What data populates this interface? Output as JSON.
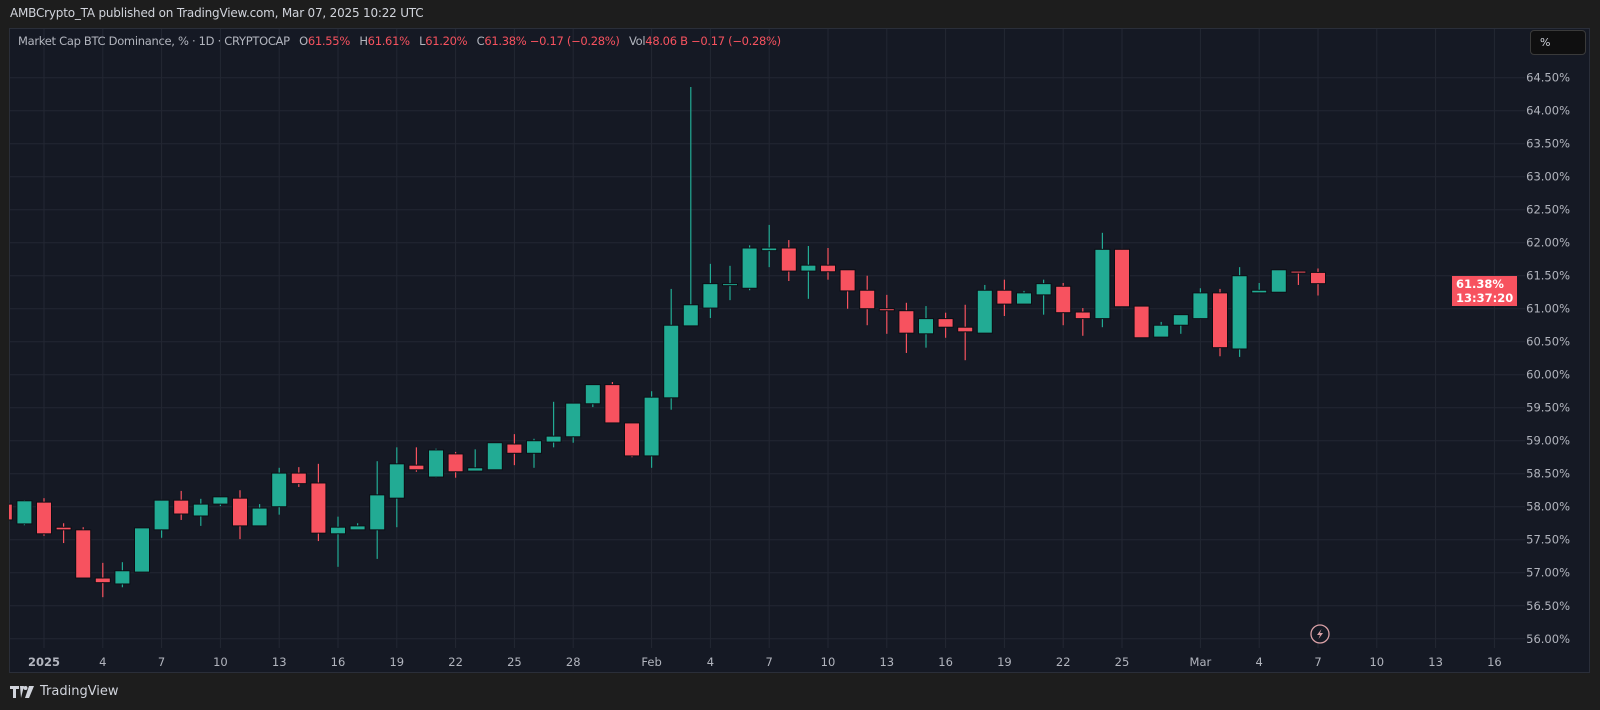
{
  "publish_line": "AMBCrypto_TA published on TradingView.com, Mar 07, 2025 10:22 UTC",
  "legend": {
    "symbol": "Market Cap BTC Dominance, % · 1D · CRYPTOCAP",
    "o_label": "O",
    "o": "61.55%",
    "h_label": "H",
    "h": "61.61%",
    "l_label": "L",
    "l": "61.20%",
    "c_label": "C",
    "c": "61.38%",
    "change": "−0.17 (−0.28%)",
    "vol_label": "Vol",
    "vol": "48.06 B",
    "vol_change": "−0.17 (−0.28%)"
  },
  "scale_button": "%",
  "price_tag": {
    "price": "61.38%",
    "countdown": "13:37:20"
  },
  "footer_logo": "TradingView",
  "icons": {
    "alert": "lightning-icon",
    "logo": "tradingview-logo"
  },
  "colors": {
    "up": "#22ab94",
    "down": "#f7525f",
    "background": "#151924",
    "grid": "#232733"
  },
  "chart_data": {
    "type": "candlestick",
    "title": "Market Cap BTC Dominance, % · 1D · CRYPTOCAP",
    "interval": "1D",
    "ylim": [
      56.0,
      64.5
    ],
    "y_unit": "%",
    "grid": true,
    "y_ticks": [
      "56.00%",
      "56.50%",
      "57.00%",
      "57.50%",
      "58.00%",
      "58.50%",
      "59.00%",
      "59.50%",
      "60.00%",
      "60.50%",
      "61.00%",
      "61.50%",
      "62.00%",
      "62.50%",
      "63.00%",
      "63.50%",
      "64.00%",
      "64.50%"
    ],
    "x_ticks": [
      {
        "date": "2025-01-01",
        "label": "2025"
      },
      {
        "date": "2025-01-04",
        "label": "4"
      },
      {
        "date": "2025-01-07",
        "label": "7"
      },
      {
        "date": "2025-01-10",
        "label": "10"
      },
      {
        "date": "2025-01-13",
        "label": "13"
      },
      {
        "date": "2025-01-16",
        "label": "16"
      },
      {
        "date": "2025-01-19",
        "label": "19"
      },
      {
        "date": "2025-01-22",
        "label": "22"
      },
      {
        "date": "2025-01-25",
        "label": "25"
      },
      {
        "date": "2025-01-28",
        "label": "28"
      },
      {
        "date": "2025-02-01",
        "label": "Feb"
      },
      {
        "date": "2025-02-04",
        "label": "4"
      },
      {
        "date": "2025-02-07",
        "label": "7"
      },
      {
        "date": "2025-02-10",
        "label": "10"
      },
      {
        "date": "2025-02-13",
        "label": "13"
      },
      {
        "date": "2025-02-16",
        "label": "16"
      },
      {
        "date": "2025-02-19",
        "label": "19"
      },
      {
        "date": "2025-02-22",
        "label": "22"
      },
      {
        "date": "2025-02-25",
        "label": "25"
      },
      {
        "date": "2025-03-01",
        "label": "Mar"
      },
      {
        "date": "2025-03-04",
        "label": "4"
      },
      {
        "date": "2025-03-07",
        "label": "7"
      },
      {
        "date": "2025-03-10",
        "label": "10"
      },
      {
        "date": "2025-03-13",
        "label": "13"
      },
      {
        "date": "2025-03-16",
        "label": "16"
      }
    ],
    "columns": [
      "date",
      "open",
      "high",
      "low",
      "close"
    ],
    "candles": [
      [
        "2024-12-30",
        58.04,
        58.07,
        57.78,
        57.8
      ],
      [
        "2024-12-31",
        57.74,
        58.1,
        57.72,
        58.09
      ],
      [
        "2025-01-01",
        58.07,
        58.13,
        57.56,
        57.59
      ],
      [
        "2025-01-02",
        57.69,
        57.75,
        57.45,
        57.65
      ],
      [
        "2025-01-03",
        57.65,
        57.69,
        56.92,
        56.92
      ],
      [
        "2025-01-04",
        56.92,
        57.15,
        56.63,
        56.85
      ],
      [
        "2025-01-05",
        56.83,
        57.16,
        56.78,
        57.03
      ],
      [
        "2025-01-06",
        57.01,
        57.68,
        57.01,
        57.68
      ],
      [
        "2025-01-07",
        57.65,
        58.1,
        57.53,
        58.1
      ],
      [
        "2025-01-08",
        58.1,
        58.24,
        57.8,
        57.89
      ],
      [
        "2025-01-09",
        57.86,
        58.12,
        57.71,
        58.04
      ],
      [
        "2025-01-10",
        58.04,
        58.15,
        58.01,
        58.15
      ],
      [
        "2025-01-11",
        58.13,
        58.25,
        57.51,
        57.71
      ],
      [
        "2025-01-12",
        57.71,
        58.04,
        57.71,
        57.98
      ],
      [
        "2025-01-13",
        58.0,
        58.59,
        57.88,
        58.51
      ],
      [
        "2025-01-14",
        58.51,
        58.6,
        58.3,
        58.35
      ],
      [
        "2025-01-15",
        58.36,
        58.65,
        57.48,
        57.6
      ],
      [
        "2025-01-16",
        57.59,
        57.85,
        57.09,
        57.69
      ],
      [
        "2025-01-17",
        57.65,
        57.75,
        57.65,
        57.71
      ],
      [
        "2025-01-18",
        57.65,
        58.69,
        57.21,
        58.18
      ],
      [
        "2025-01-19",
        58.13,
        58.9,
        57.69,
        58.65
      ],
      [
        "2025-01-20",
        58.63,
        58.9,
        58.53,
        58.56
      ],
      [
        "2025-01-21",
        58.45,
        58.88,
        58.44,
        58.86
      ],
      [
        "2025-01-22",
        58.8,
        58.83,
        58.44,
        58.53
      ],
      [
        "2025-01-23",
        58.54,
        58.87,
        58.54,
        58.59
      ],
      [
        "2025-01-24",
        58.56,
        58.97,
        58.56,
        58.97
      ],
      [
        "2025-01-25",
        58.95,
        59.1,
        58.63,
        58.81
      ],
      [
        "2025-01-26",
        58.81,
        59.03,
        58.59,
        59.0
      ],
      [
        "2025-01-27",
        58.98,
        59.59,
        58.9,
        59.07
      ],
      [
        "2025-01-28",
        59.06,
        59.57,
        58.97,
        59.57
      ],
      [
        "2025-01-29",
        59.56,
        59.85,
        59.51,
        59.85
      ],
      [
        "2025-01-30",
        59.85,
        59.89,
        59.27,
        59.27
      ],
      [
        "2025-01-31",
        59.27,
        59.27,
        58.75,
        58.77
      ],
      [
        "2025-02-01",
        58.77,
        59.75,
        58.59,
        59.66
      ],
      [
        "2025-02-02",
        59.65,
        61.3,
        59.47,
        60.75
      ],
      [
        "2025-02-03",
        60.74,
        64.36,
        60.74,
        61.06
      ],
      [
        "2025-02-04",
        61.01,
        61.68,
        60.86,
        61.38
      ],
      [
        "2025-02-05",
        61.37,
        61.65,
        61.13,
        61.38
      ],
      [
        "2025-02-06",
        61.31,
        61.96,
        61.28,
        61.92
      ],
      [
        "2025-02-07",
        61.88,
        62.27,
        61.63,
        61.92
      ],
      [
        "2025-02-08",
        61.92,
        62.04,
        61.42,
        61.57
      ],
      [
        "2025-02-09",
        61.57,
        61.95,
        61.15,
        61.66
      ],
      [
        "2025-02-10",
        61.66,
        61.92,
        61.44,
        61.56
      ],
      [
        "2025-02-11",
        61.59,
        61.59,
        61.0,
        61.27
      ],
      [
        "2025-02-12",
        61.28,
        61.5,
        60.75,
        61.0
      ],
      [
        "2025-02-13",
        61.0,
        61.21,
        60.62,
        60.97
      ],
      [
        "2025-02-14",
        60.97,
        61.09,
        60.33,
        60.63
      ],
      [
        "2025-02-15",
        60.62,
        61.04,
        60.41,
        60.85
      ],
      [
        "2025-02-16",
        60.85,
        60.94,
        60.56,
        60.72
      ],
      [
        "2025-02-17",
        60.72,
        61.06,
        60.22,
        60.65
      ],
      [
        "2025-02-18",
        60.63,
        61.36,
        60.63,
        61.28
      ],
      [
        "2025-02-19",
        61.28,
        61.44,
        60.89,
        61.07
      ],
      [
        "2025-02-20",
        61.07,
        61.27,
        61.07,
        61.24
      ],
      [
        "2025-02-21",
        61.21,
        61.44,
        60.91,
        61.38
      ],
      [
        "2025-02-22",
        61.34,
        61.39,
        60.75,
        60.94
      ],
      [
        "2025-02-23",
        60.95,
        61.01,
        60.59,
        60.85
      ],
      [
        "2025-02-24",
        60.85,
        62.15,
        60.72,
        61.9
      ],
      [
        "2025-02-25",
        61.9,
        61.9,
        61.03,
        61.03
      ],
      [
        "2025-02-26",
        61.04,
        61.04,
        60.56,
        60.56
      ],
      [
        "2025-02-27",
        60.57,
        60.8,
        60.57,
        60.75
      ],
      [
        "2025-02-28",
        60.75,
        60.91,
        60.62,
        60.91
      ],
      [
        "2025-03-01",
        60.85,
        61.31,
        60.85,
        61.24
      ],
      [
        "2025-03-02",
        61.24,
        61.3,
        60.28,
        60.41
      ],
      [
        "2025-03-03",
        60.39,
        61.63,
        60.27,
        61.5
      ],
      [
        "2025-03-04",
        61.24,
        61.39,
        61.24,
        61.28
      ],
      [
        "2025-03-05",
        61.25,
        61.59,
        61.25,
        61.59
      ],
      [
        "2025-03-06",
        61.57,
        61.57,
        61.36,
        61.56
      ],
      [
        "2025-03-07",
        61.55,
        61.61,
        61.2,
        61.38
      ]
    ]
  }
}
